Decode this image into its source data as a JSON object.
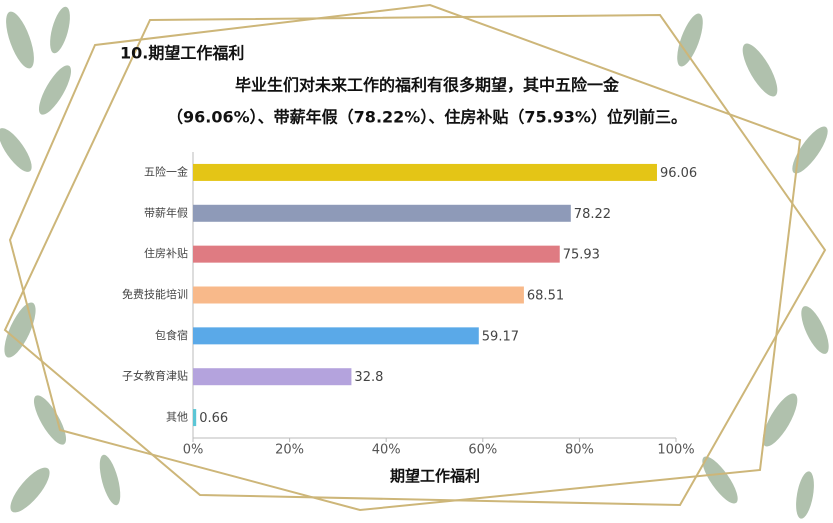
{
  "chart_data": {
    "type": "hbar",
    "title": "10.期望工作福利",
    "subtitle": [
      "毕业生们对未来工作的福利有很多期望，其中五险一金",
      "（96.06%）、带薪年假（78.22%）、住房补贴（75.93%）位列前三。"
    ],
    "x_label": "期望工作福利",
    "categories": [
      "五险一金",
      "带薪年假",
      "住房补贴",
      "免费技能培训",
      "包食宿",
      "子女教育津贴",
      "其他"
    ],
    "values": [
      96.06,
      78.22,
      75.93,
      68.51,
      59.17,
      32.8,
      0.66
    ],
    "colors": [
      "#e4c516",
      "#8e9ab8",
      "#df7b82",
      "#f8b98a",
      "#5aa9e8",
      "#b4a3dd",
      "#5bc6d6"
    ],
    "xlim": [
      0,
      100
    ],
    "xticks": [
      {
        "value": 0,
        "label": "0%"
      },
      {
        "value": 20,
        "label": "20%"
      },
      {
        "value": 40,
        "label": "40%"
      },
      {
        "value": 60,
        "label": "60%"
      },
      {
        "value": 80,
        "label": "80%"
      },
      {
        "value": 100,
        "label": "100%"
      }
    ]
  }
}
